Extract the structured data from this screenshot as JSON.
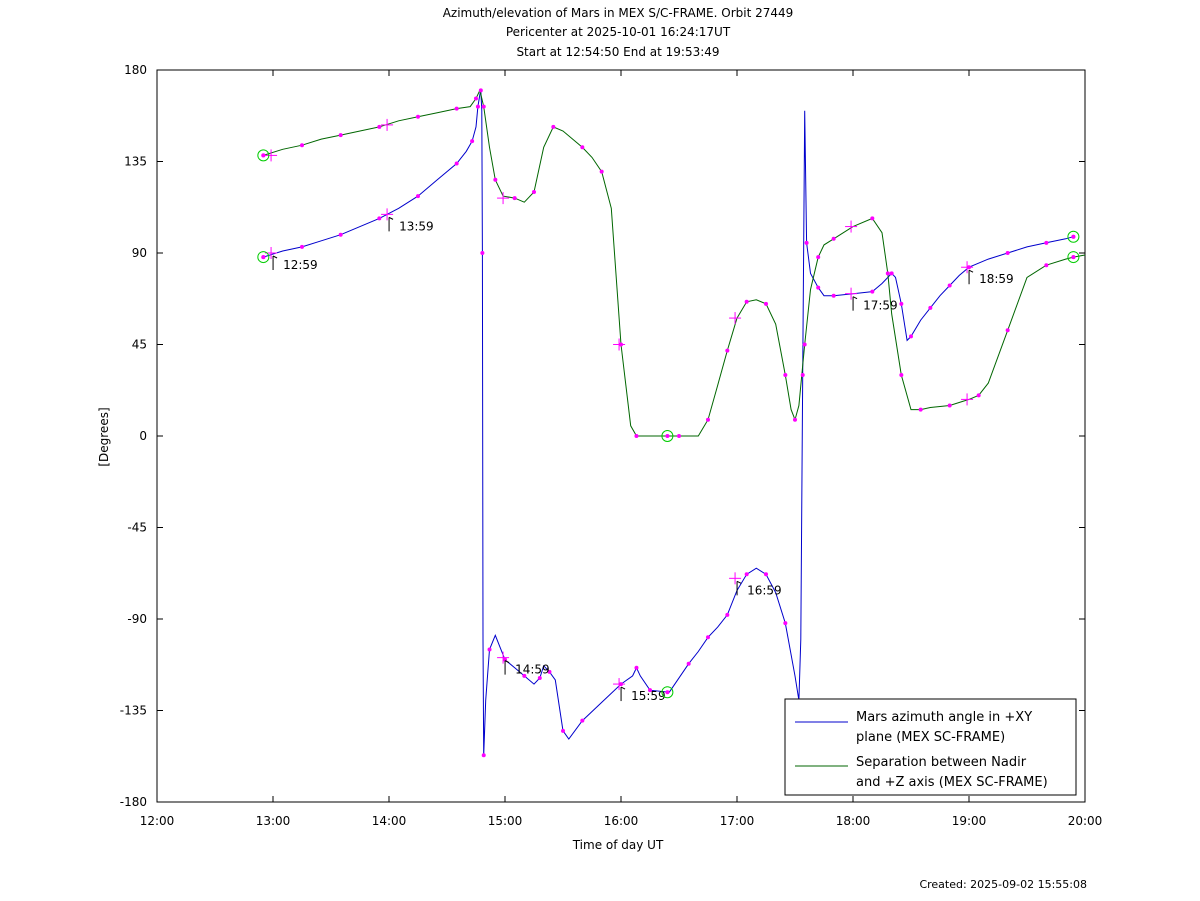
{
  "chart_data": {
    "type": "line",
    "title_lines": [
      "Azimuth/elevation of Mars in MEX S/C-FRAME.  Orbit 27449",
      "Pericenter at 2025-10-01 16:24:17UT",
      "Start at 12:54:50 End at 19:53:49"
    ],
    "xlabel": "Time of day UT",
    "ylabel": "[Degrees]",
    "xlim": [
      "12:00",
      "20:00"
    ],
    "ylim": [
      -180,
      180
    ],
    "x_ticks": [
      "12:00",
      "13:00",
      "14:00",
      "15:00",
      "16:00",
      "17:00",
      "18:00",
      "19:00",
      "20:00"
    ],
    "y_ticks": [
      "180",
      "135",
      "90",
      "45",
      "0",
      "-45",
      "-90",
      "-135",
      "-180"
    ],
    "legend_position": "bottom-right",
    "series": [
      {
        "name_lines": [
          "Mars azimuth angle in +XY",
          "plane (MEX SC-FRAME)"
        ],
        "color": "#0000cc",
        "points": [
          [
            "12:55",
            88
          ],
          [
            "13:05",
            91
          ],
          [
            "13:15",
            93
          ],
          [
            "13:25",
            96
          ],
          [
            "13:35",
            99
          ],
          [
            "13:45",
            103
          ],
          [
            "13:55",
            107
          ],
          [
            "14:05",
            112
          ],
          [
            "14:15",
            118
          ],
          [
            "14:25",
            126
          ],
          [
            "14:35",
            134
          ],
          [
            "14:40",
            140
          ],
          [
            "14:43",
            145
          ],
          [
            "14:45",
            152
          ],
          [
            "14:46",
            162
          ],
          [
            "14:47",
            168
          ],
          [
            "14:47.5",
            170
          ],
          [
            "14:48",
            160
          ],
          [
            "14:48.3",
            90
          ],
          [
            "14:48.6",
            -100
          ],
          [
            "14:49",
            -157
          ],
          [
            "14:50",
            -130
          ],
          [
            "14:52",
            -105
          ],
          [
            "14:55",
            -98
          ],
          [
            "15:00",
            -110
          ],
          [
            "15:05",
            -114
          ],
          [
            "15:10",
            -118
          ],
          [
            "15:15",
            -122
          ],
          [
            "15:18",
            -119
          ],
          [
            "15:20",
            -113
          ],
          [
            "15:23",
            -116
          ],
          [
            "15:26",
            -120
          ],
          [
            "15:30",
            -145
          ],
          [
            "15:33",
            -149
          ],
          [
            "15:40",
            -140
          ],
          [
            "15:50",
            -131
          ],
          [
            "16:00",
            -122
          ],
          [
            "16:06",
            -118
          ],
          [
            "16:08",
            -114
          ],
          [
            "16:10",
            -118
          ],
          [
            "16:15",
            -125
          ],
          [
            "16:25",
            -126
          ],
          [
            "16:35",
            -112
          ],
          [
            "16:40",
            -106
          ],
          [
            "16:45",
            -99
          ],
          [
            "16:50",
            -94
          ],
          [
            "16:55",
            -88
          ],
          [
            "17:00",
            -76
          ],
          [
            "17:05",
            -68
          ],
          [
            "17:10",
            -65
          ],
          [
            "17:15",
            -68
          ],
          [
            "17:20",
            -77
          ],
          [
            "17:25",
            -92
          ],
          [
            "17:30",
            -118
          ],
          [
            "17:32",
            -130
          ],
          [
            "17:33",
            -100
          ],
          [
            "17:34",
            30
          ],
          [
            "17:35",
            160
          ],
          [
            "17:36",
            95
          ],
          [
            "17:38",
            80
          ],
          [
            "17:42",
            73
          ],
          [
            "17:45",
            69
          ],
          [
            "17:50",
            69
          ],
          [
            "18:00",
            70
          ],
          [
            "18:10",
            71
          ],
          [
            "18:15",
            75
          ],
          [
            "18:20",
            80
          ],
          [
            "18:22",
            78
          ],
          [
            "18:25",
            65
          ],
          [
            "18:28",
            47
          ],
          [
            "18:30",
            49
          ],
          [
            "18:35",
            57
          ],
          [
            "18:40",
            63
          ],
          [
            "18:45",
            69
          ],
          [
            "18:50",
            74
          ],
          [
            "18:55",
            79
          ],
          [
            "19:00",
            83
          ],
          [
            "19:10",
            87
          ],
          [
            "19:20",
            90
          ],
          [
            "19:30",
            93
          ],
          [
            "19:40",
            95
          ],
          [
            "19:50",
            97
          ],
          [
            "19:54",
            98
          ]
        ],
        "time_marks": [
          {
            "x": "12:59",
            "y": 90,
            "label": "12:59"
          },
          {
            "x": "13:59",
            "y": 109,
            "label": "13:59"
          },
          {
            "x": "14:59",
            "y": -109,
            "label": "14:59"
          },
          {
            "x": "15:59",
            "y": -122,
            "label": "15:59"
          },
          {
            "x": "16:59",
            "y": -70,
            "label": "16:59"
          },
          {
            "x": "17:59",
            "y": 70,
            "label": "17:59"
          },
          {
            "x": "18:59",
            "y": 83,
            "label": "18:59"
          }
        ]
      },
      {
        "name_lines": [
          "Separation between Nadir",
          "and +Z axis (MEX SC-FRAME)"
        ],
        "color": "#006600",
        "points": [
          [
            "12:55",
            138
          ],
          [
            "13:05",
            141
          ],
          [
            "13:15",
            143
          ],
          [
            "13:25",
            146
          ],
          [
            "13:35",
            148
          ],
          [
            "13:45",
            150
          ],
          [
            "13:55",
            152
          ],
          [
            "14:05",
            155
          ],
          [
            "14:15",
            157
          ],
          [
            "14:25",
            159
          ],
          [
            "14:35",
            161
          ],
          [
            "14:42",
            162
          ],
          [
            "14:45",
            166
          ],
          [
            "14:47",
            170
          ],
          [
            "14:49",
            162
          ],
          [
            "14:52",
            142
          ],
          [
            "14:55",
            126
          ],
          [
            "14:59",
            118
          ],
          [
            "15:05",
            117
          ],
          [
            "15:10",
            115
          ],
          [
            "15:15",
            120
          ],
          [
            "15:20",
            142
          ],
          [
            "15:25",
            152
          ],
          [
            "15:30",
            150
          ],
          [
            "15:40",
            142
          ],
          [
            "15:45",
            137
          ],
          [
            "15:50",
            130
          ],
          [
            "15:55",
            112
          ],
          [
            "16:00",
            45
          ],
          [
            "16:05",
            5
          ],
          [
            "16:08",
            0
          ],
          [
            "16:20",
            0
          ],
          [
            "16:30",
            0
          ],
          [
            "16:40",
            0
          ],
          [
            "16:45",
            8
          ],
          [
            "16:50",
            25
          ],
          [
            "16:55",
            42
          ],
          [
            "17:00",
            58
          ],
          [
            "17:05",
            66
          ],
          [
            "17:10",
            67
          ],
          [
            "17:15",
            65
          ],
          [
            "17:20",
            55
          ],
          [
            "17:25",
            30
          ],
          [
            "17:28",
            13
          ],
          [
            "17:30",
            8
          ],
          [
            "17:32",
            15
          ],
          [
            "17:35",
            45
          ],
          [
            "17:38",
            72
          ],
          [
            "17:42",
            88
          ],
          [
            "17:45",
            94
          ],
          [
            "17:50",
            97
          ],
          [
            "18:00",
            103
          ],
          [
            "18:10",
            107
          ],
          [
            "18:15",
            100
          ],
          [
            "18:18",
            80
          ],
          [
            "18:20",
            60
          ],
          [
            "18:25",
            30
          ],
          [
            "18:30",
            13
          ],
          [
            "18:35",
            13
          ],
          [
            "18:40",
            14
          ],
          [
            "18:50",
            15
          ],
          [
            "19:00",
            18
          ],
          [
            "19:05",
            20
          ],
          [
            "19:10",
            26
          ],
          [
            "19:20",
            52
          ],
          [
            "19:30",
            78
          ],
          [
            "19:40",
            84
          ],
          [
            "19:50",
            87
          ],
          [
            "19:54",
            88
          ],
          [
            "20:00",
            89
          ]
        ],
        "time_marks": [
          {
            "x": "12:59",
            "y": 138
          },
          {
            "x": "13:59",
            "y": 153
          },
          {
            "x": "14:59",
            "y": 117
          },
          {
            "x": "15:59",
            "y": 45
          },
          {
            "x": "16:59",
            "y": 58
          },
          {
            "x": "17:59",
            "y": 103
          },
          {
            "x": "18:59",
            "y": 18
          }
        ]
      }
    ],
    "circle_markers": [
      {
        "x": "12:55",
        "y": 138
      },
      {
        "x": "12:55",
        "y": 88
      },
      {
        "x": "16:24",
        "y": 0
      },
      {
        "x": "16:24",
        "y": -126
      },
      {
        "x": "19:54",
        "y": 98
      },
      {
        "x": "19:54",
        "y": 88
      }
    ],
    "marker_color": "#ff00ff",
    "circle_color": "#00cc00"
  },
  "footer": {
    "created": "Created: 2025-09-02 15:55:08"
  }
}
